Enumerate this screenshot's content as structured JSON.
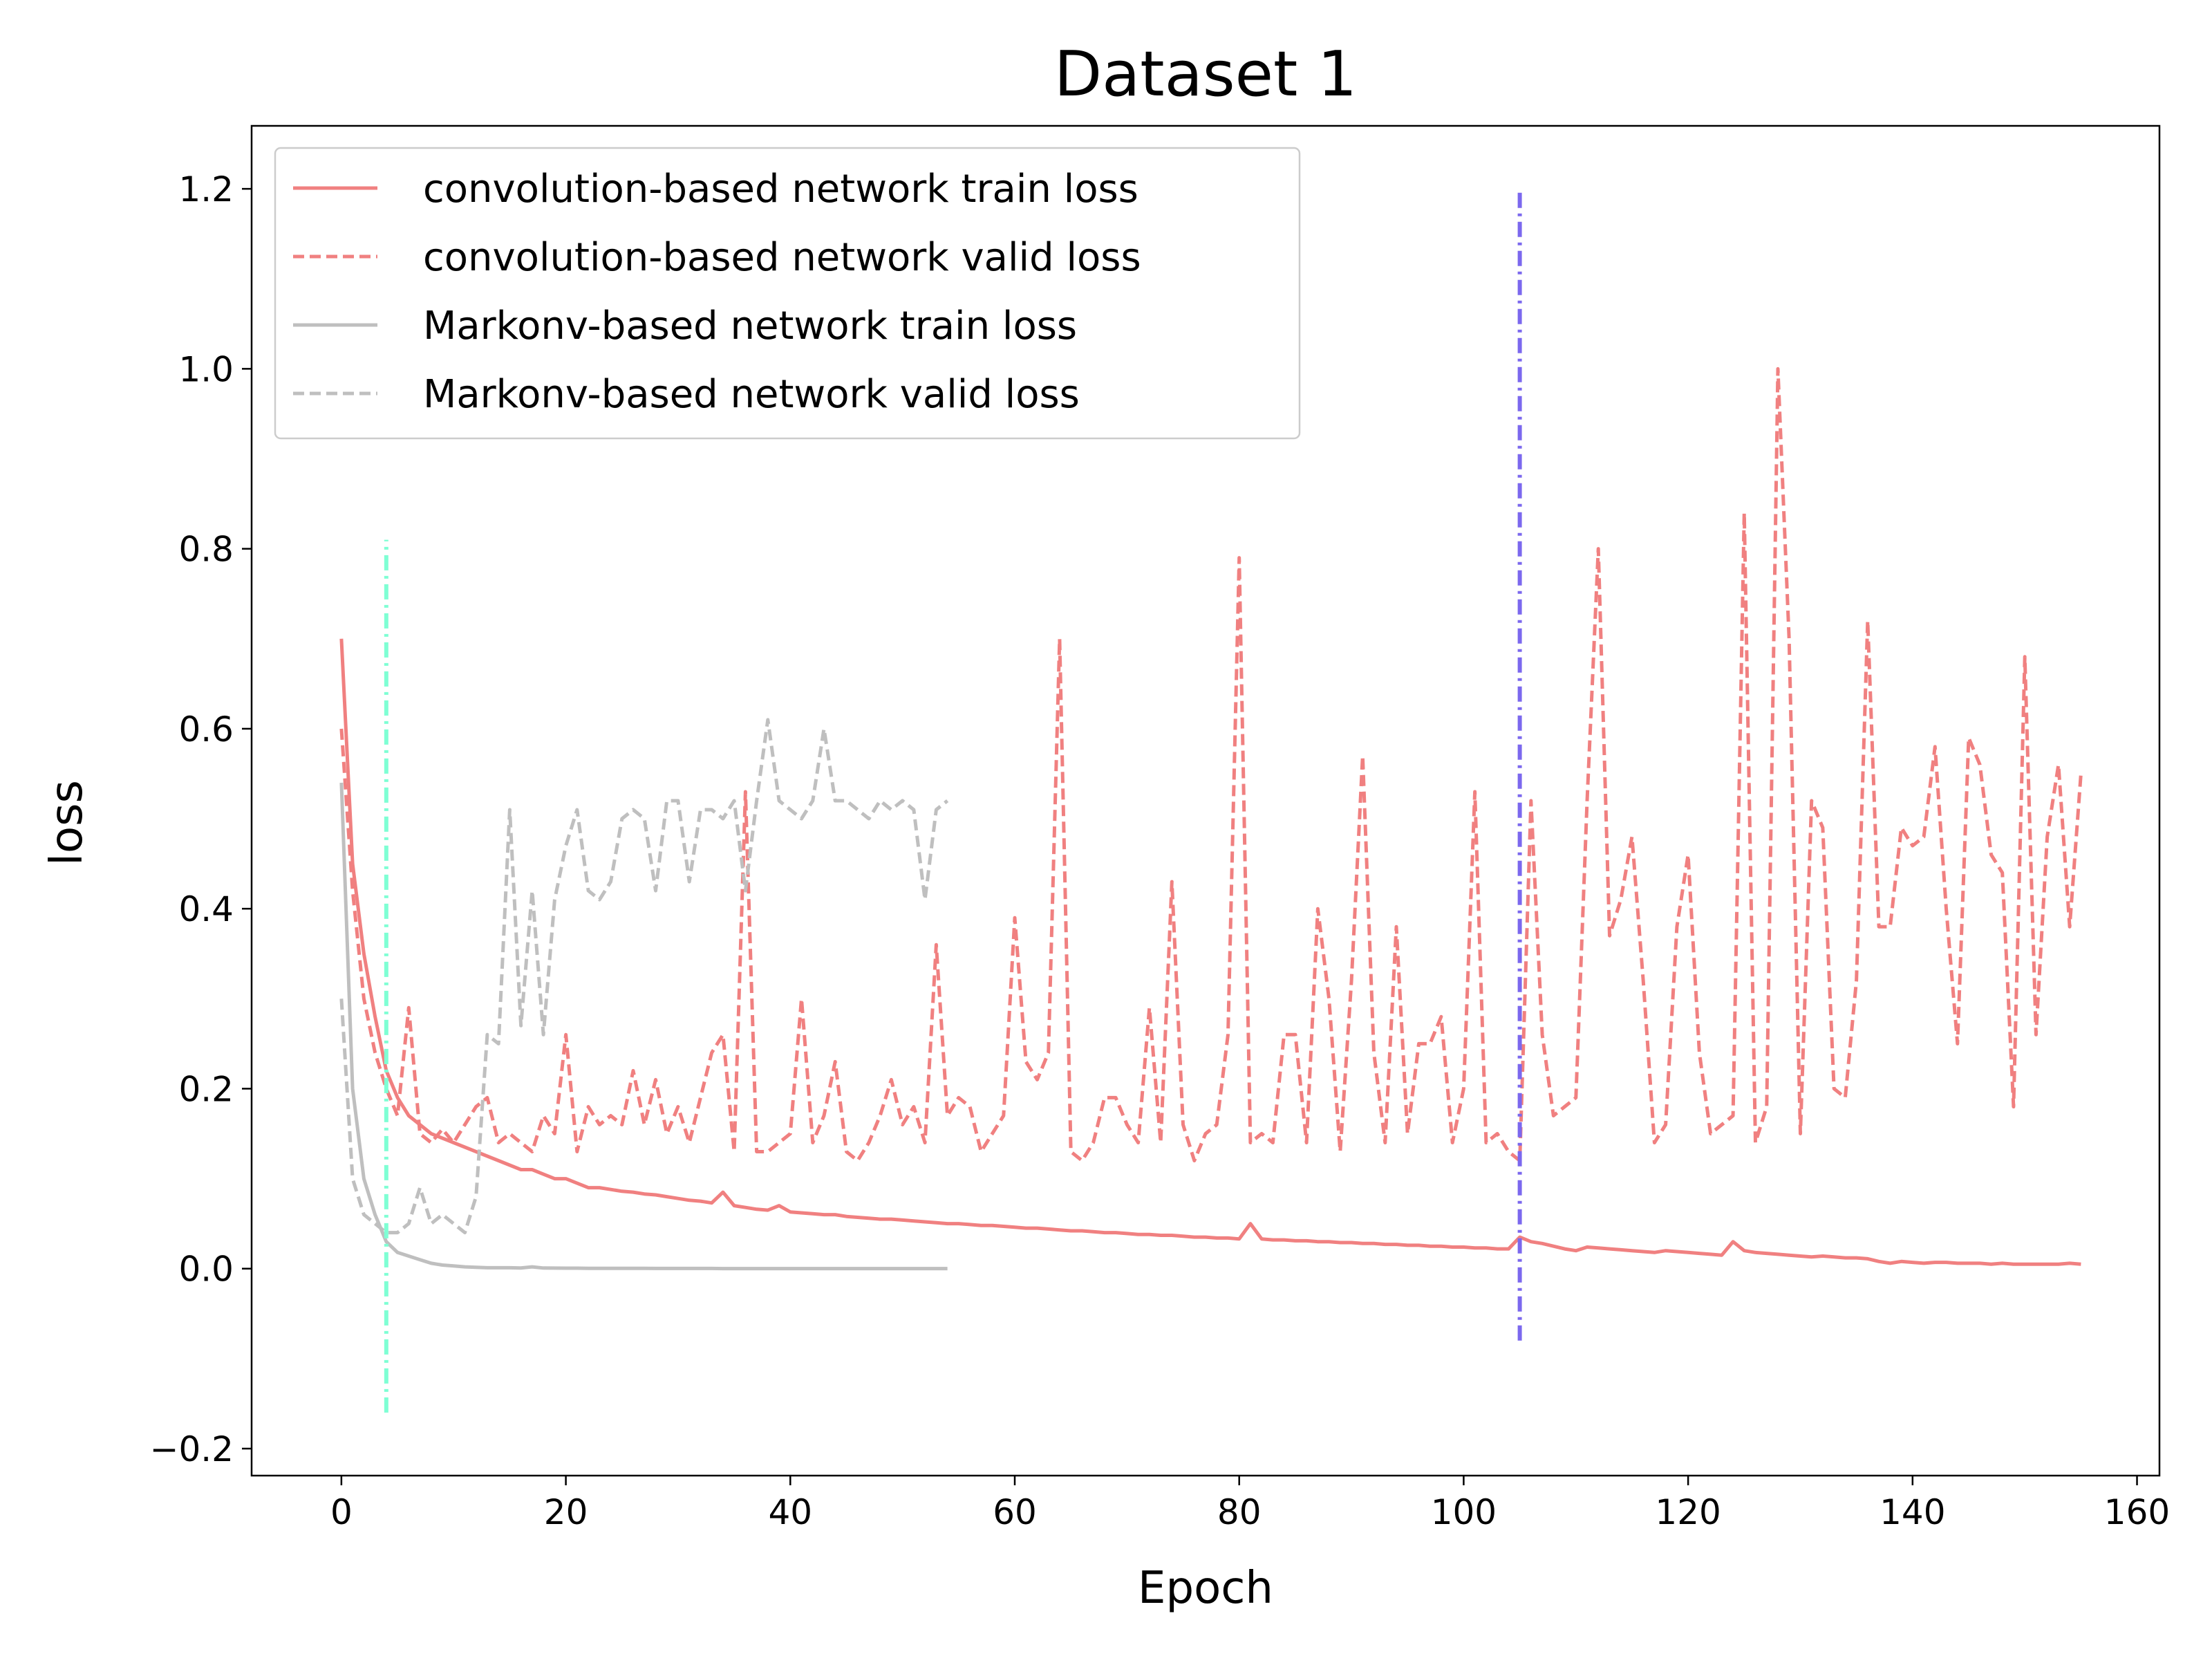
{
  "chart_data": {
    "type": "line",
    "title": "Dataset 1",
    "xlabel": "Epoch",
    "ylabel": "loss",
    "xlim": [
      -8,
      162
    ],
    "ylim": [
      -0.23,
      1.27
    ],
    "xticks": [
      0,
      20,
      40,
      60,
      80,
      100,
      120,
      140,
      160
    ],
    "xtick_labels": [
      "0",
      "20",
      "40",
      "60",
      "80",
      "100",
      "120",
      "140",
      "160"
    ],
    "yticks": [
      -0.2,
      0.0,
      0.2,
      0.4,
      0.6,
      0.8,
      1.0,
      1.2
    ],
    "ytick_labels": [
      "−0.2",
      "0.0",
      "0.2",
      "0.4",
      "0.6",
      "0.8",
      "1.0",
      "1.2"
    ],
    "grid": false,
    "legend_position": "top-left",
    "series": [
      {
        "name": "convolution-based network train loss",
        "color": "#f08080",
        "style": "solid",
        "x_start": 0,
        "values": [
          0.7,
          0.45,
          0.35,
          0.28,
          0.22,
          0.19,
          0.17,
          0.16,
          0.15,
          0.145,
          0.14,
          0.135,
          0.13,
          0.125,
          0.12,
          0.115,
          0.11,
          0.11,
          0.105,
          0.1,
          0.1,
          0.095,
          0.09,
          0.09,
          0.088,
          0.086,
          0.085,
          0.083,
          0.082,
          0.08,
          0.078,
          0.076,
          0.075,
          0.073,
          0.085,
          0.07,
          0.068,
          0.066,
          0.065,
          0.07,
          0.063,
          0.062,
          0.061,
          0.06,
          0.06,
          0.058,
          0.057,
          0.056,
          0.055,
          0.055,
          0.054,
          0.053,
          0.052,
          0.051,
          0.05,
          0.05,
          0.049,
          0.048,
          0.048,
          0.047,
          0.046,
          0.045,
          0.045,
          0.044,
          0.043,
          0.042,
          0.042,
          0.041,
          0.04,
          0.04,
          0.039,
          0.038,
          0.038,
          0.037,
          0.037,
          0.036,
          0.035,
          0.035,
          0.034,
          0.034,
          0.033,
          0.05,
          0.033,
          0.032,
          0.032,
          0.031,
          0.031,
          0.03,
          0.03,
          0.029,
          0.029,
          0.028,
          0.028,
          0.027,
          0.027,
          0.026,
          0.026,
          0.025,
          0.025,
          0.024,
          0.024,
          0.023,
          0.023,
          0.022,
          0.022,
          0.035,
          0.03,
          0.028,
          0.025,
          0.022,
          0.02,
          0.024,
          0.023,
          0.022,
          0.021,
          0.02,
          0.019,
          0.018,
          0.02,
          0.019,
          0.018,
          0.017,
          0.016,
          0.015,
          0.03,
          0.02,
          0.018,
          0.017,
          0.016,
          0.015,
          0.014,
          0.013,
          0.014,
          0.013,
          0.012,
          0.012,
          0.011,
          0.008,
          0.006,
          0.008,
          0.007,
          0.006,
          0.007,
          0.007,
          0.006,
          0.006,
          0.006,
          0.005,
          0.006,
          0.005,
          0.005,
          0.005,
          0.005,
          0.005,
          0.006,
          0.005
        ]
      },
      {
        "name": "convolution-based network valid loss",
        "color": "#f08080",
        "style": "dashed",
        "x_start": 0,
        "values": [
          0.6,
          0.42,
          0.3,
          0.24,
          0.2,
          0.17,
          0.29,
          0.15,
          0.14,
          0.155,
          0.14,
          0.16,
          0.18,
          0.19,
          0.14,
          0.15,
          0.14,
          0.13,
          0.17,
          0.15,
          0.26,
          0.13,
          0.18,
          0.16,
          0.17,
          0.16,
          0.22,
          0.16,
          0.21,
          0.15,
          0.18,
          0.14,
          0.19,
          0.24,
          0.26,
          0.13,
          0.53,
          0.13,
          0.13,
          0.14,
          0.15,
          0.3,
          0.14,
          0.17,
          0.23,
          0.13,
          0.12,
          0.14,
          0.17,
          0.21,
          0.16,
          0.18,
          0.14,
          0.36,
          0.17,
          0.19,
          0.18,
          0.13,
          0.15,
          0.17,
          0.39,
          0.23,
          0.21,
          0.24,
          0.7,
          0.13,
          0.12,
          0.14,
          0.19,
          0.19,
          0.16,
          0.14,
          0.29,
          0.14,
          0.43,
          0.16,
          0.12,
          0.15,
          0.16,
          0.26,
          0.79,
          0.14,
          0.15,
          0.14,
          0.26,
          0.26,
          0.14,
          0.4,
          0.3,
          0.13,
          0.32,
          0.57,
          0.24,
          0.14,
          0.38,
          0.15,
          0.25,
          0.25,
          0.28,
          0.14,
          0.2,
          0.53,
          0.14,
          0.15,
          0.13,
          0.12,
          0.52,
          0.26,
          0.17,
          0.18,
          0.19,
          0.52,
          0.8,
          0.37,
          0.41,
          0.48,
          0.32,
          0.14,
          0.16,
          0.38,
          0.46,
          0.24,
          0.15,
          0.16,
          0.17,
          0.84,
          0.14,
          0.18,
          1.0,
          0.7,
          0.15,
          0.52,
          0.49,
          0.2,
          0.19,
          0.32,
          0.72,
          0.38,
          0.38,
          0.49,
          0.47,
          0.48,
          0.58,
          0.4,
          0.25,
          0.59,
          0.56,
          0.46,
          0.44,
          0.18,
          0.68,
          0.26,
          0.48,
          0.56,
          0.38,
          0.55
        ]
      },
      {
        "name": "Markonv-based network train loss",
        "color": "#bfbfbf",
        "style": "solid",
        "x_start": 0,
        "values": [
          0.54,
          0.2,
          0.1,
          0.06,
          0.03,
          0.018,
          0.014,
          0.01,
          0.006,
          0.004,
          0.003,
          0.002,
          0.0015,
          0.001,
          0.001,
          0.001,
          0.0008,
          0.002,
          0.0007,
          0.0006,
          0.0005,
          0.0005,
          0.0004,
          0.0004,
          0.0003,
          0.0003,
          0.0003,
          0.0003,
          0.0002,
          0.0002,
          0.0002,
          0.0002,
          0.0002,
          0.0002,
          0.0001,
          0.0001,
          0.0001,
          0.0001,
          0.0001,
          0.0001,
          0.0001,
          0.0001,
          0.0001,
          0.0001,
          0.0001,
          0.0001,
          0.0001,
          0.0001,
          0.0001,
          0.0001,
          0.0001,
          0.0001,
          0.0001,
          0.0001,
          0.0001
        ]
      },
      {
        "name": "Markonv-based network valid loss",
        "color": "#bfbfbf",
        "style": "dashed",
        "x_start": 0,
        "values": [
          0.3,
          0.1,
          0.06,
          0.05,
          0.04,
          0.04,
          0.05,
          0.09,
          0.05,
          0.06,
          0.05,
          0.04,
          0.08,
          0.26,
          0.25,
          0.51,
          0.27,
          0.42,
          0.26,
          0.41,
          0.47,
          0.51,
          0.42,
          0.41,
          0.43,
          0.5,
          0.51,
          0.5,
          0.42,
          0.52,
          0.52,
          0.43,
          0.51,
          0.51,
          0.5,
          0.52,
          0.42,
          0.52,
          0.61,
          0.52,
          0.51,
          0.5,
          0.52,
          0.6,
          0.52,
          0.52,
          0.51,
          0.5,
          0.52,
          0.51,
          0.52,
          0.51,
          0.41,
          0.51,
          0.52
        ]
      }
    ],
    "vertical_markers": [
      {
        "x": 4,
        "y_range": [
          -0.16,
          0.81
        ],
        "color": "#7fffd4",
        "style": "dashdot"
      },
      {
        "x": 105,
        "y_range": [
          -0.08,
          1.2
        ],
        "color": "#7b68ee",
        "style": "dashdot"
      }
    ]
  }
}
